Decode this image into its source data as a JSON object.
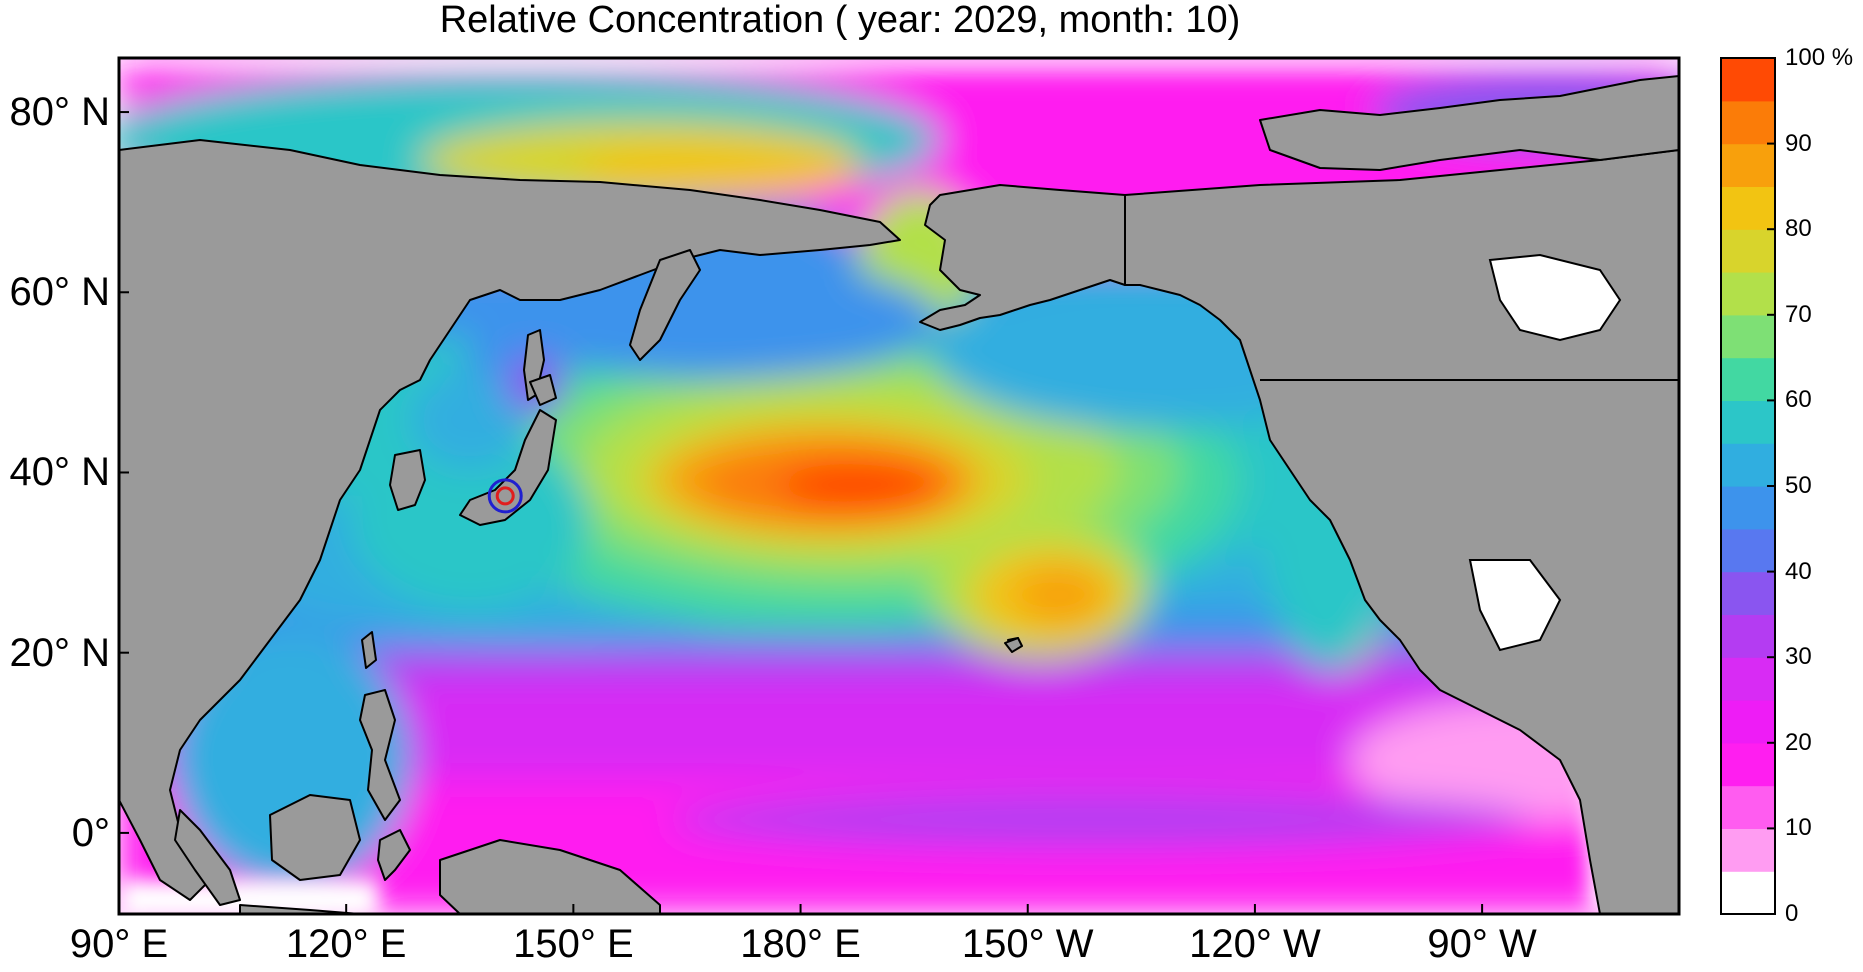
{
  "title": "Relative Concentration ( year: 2029, month: 10)",
  "map": {
    "land_color": "#9a9a9a",
    "no_data_color": "#ffffff",
    "coastline_color": "#000000",
    "marker": {
      "location": "off Fukushima, Japan",
      "lon_east": 141,
      "lat_north": 37.4,
      "outer_ring_color": "#1f1fd0",
      "inner_ring_color": "#e01e1e"
    }
  },
  "axes": {
    "lat_labels": [
      "80° N",
      "60° N",
      "40° N",
      "20° N",
      "0°"
    ],
    "lat_values": [
      80,
      60,
      40,
      20,
      0
    ],
    "lon_labels": [
      "90° E",
      "120° E",
      "150° E",
      "180° E",
      "150° W",
      "120° W",
      "90° W"
    ],
    "lon_values": [
      90,
      120,
      150,
      180,
      210,
      240,
      270
    ]
  },
  "colorbar": {
    "min": 0,
    "max": 100,
    "unit": "%",
    "tick_labels": [
      "0",
      "10",
      "20",
      "30",
      "40",
      "50",
      "60",
      "70",
      "80",
      "90",
      "100 %"
    ],
    "tick_values": [
      0,
      10,
      20,
      30,
      40,
      50,
      60,
      70,
      80,
      90,
      100
    ],
    "bins": [
      {
        "from": 0,
        "to": 5,
        "color": "#ffffff"
      },
      {
        "from": 5,
        "to": 10,
        "color": "#ff9cf2"
      },
      {
        "from": 10,
        "to": 15,
        "color": "#ff5cf0"
      },
      {
        "from": 15,
        "to": 20,
        "color": "#ff1ef0"
      },
      {
        "from": 20,
        "to": 25,
        "color": "#ee1cf6"
      },
      {
        "from": 25,
        "to": 30,
        "color": "#d82bf4"
      },
      {
        "from": 30,
        "to": 35,
        "color": "#b43cf2"
      },
      {
        "from": 35,
        "to": 40,
        "color": "#8a55f0"
      },
      {
        "from": 40,
        "to": 45,
        "color": "#5878f0"
      },
      {
        "from": 45,
        "to": 50,
        "color": "#3d93ec"
      },
      {
        "from": 50,
        "to": 55,
        "color": "#30aee0"
      },
      {
        "from": 55,
        "to": 60,
        "color": "#2cc6c8"
      },
      {
        "from": 60,
        "to": 65,
        "color": "#42d8a2"
      },
      {
        "from": 65,
        "to": 70,
        "color": "#7ee075"
      },
      {
        "from": 70,
        "to": 75,
        "color": "#b2e04a"
      },
      {
        "from": 75,
        "to": 80,
        "color": "#d8d42c"
      },
      {
        "from": 80,
        "to": 85,
        "color": "#f2c412"
      },
      {
        "from": 85,
        "to": 90,
        "color": "#f8a00c"
      },
      {
        "from": 90,
        "to": 95,
        "color": "#fb7c08"
      },
      {
        "from": 95,
        "to": 100,
        "color": "#ff4a04"
      }
    ]
  }
}
